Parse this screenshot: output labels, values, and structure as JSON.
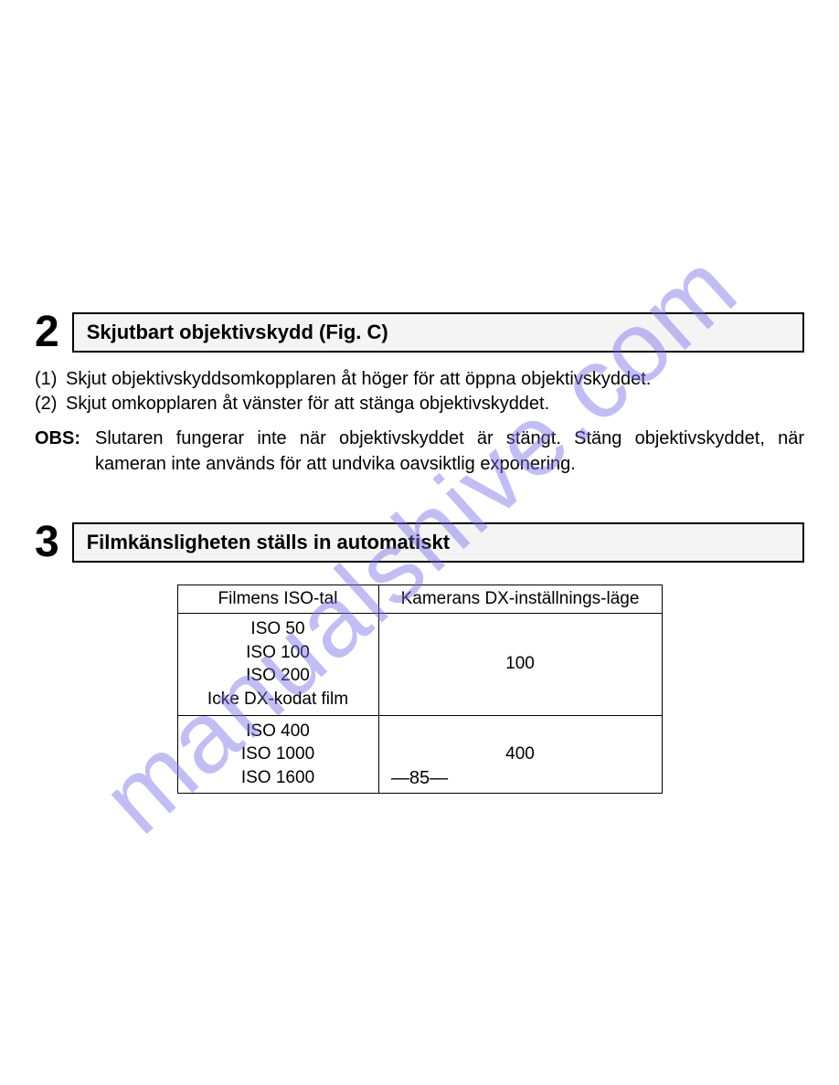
{
  "section2": {
    "number": "2",
    "title": "Skjutbart objektivskydd (Fig. C)",
    "item1_marker": "(1)",
    "item1_text": "Skjut objektivskyddsomkopplaren åt höger för att öppna objektivskyddet.",
    "item2_marker": "(2)",
    "item2_text": "Skjut omkopplaren åt vänster för att stänga objektivskyddet.",
    "obs_label": "OBS:",
    "obs_text": "Slutaren fungerar inte när objektivskyddet är stängt. Stäng objektivskyddet, när kameran inte används för att undvika oavsiktlig exponering."
  },
  "section3": {
    "number": "3",
    "title": "Filmkänsligheten ställs in automatiskt",
    "table": {
      "header_col1": "Filmens ISO-tal",
      "header_col2": "Kamerans DX-inställnings-läge",
      "row1_iso_line1": "ISO  50",
      "row1_iso_line2": "ISO 100",
      "row1_iso_line3": "ISO 200",
      "row1_iso_line4": "Icke DX-kodat film",
      "row1_dx": "100",
      "row2_iso_line1": "ISO 400",
      "row2_iso_line2": "ISO 1000",
      "row2_iso_line3": "ISO 1600",
      "row2_dx": "400"
    }
  },
  "page_number": "—85—",
  "watermark": "manualshive.com",
  "colors": {
    "text": "#000000",
    "background": "#ffffff",
    "box_fill": "#f4f4f4",
    "watermark": "rgba(120,110,230,0.45)"
  },
  "typography": {
    "body_fontsize": 20,
    "title_fontsize": 22,
    "number_fontsize": 48,
    "table_fontsize": 19
  }
}
